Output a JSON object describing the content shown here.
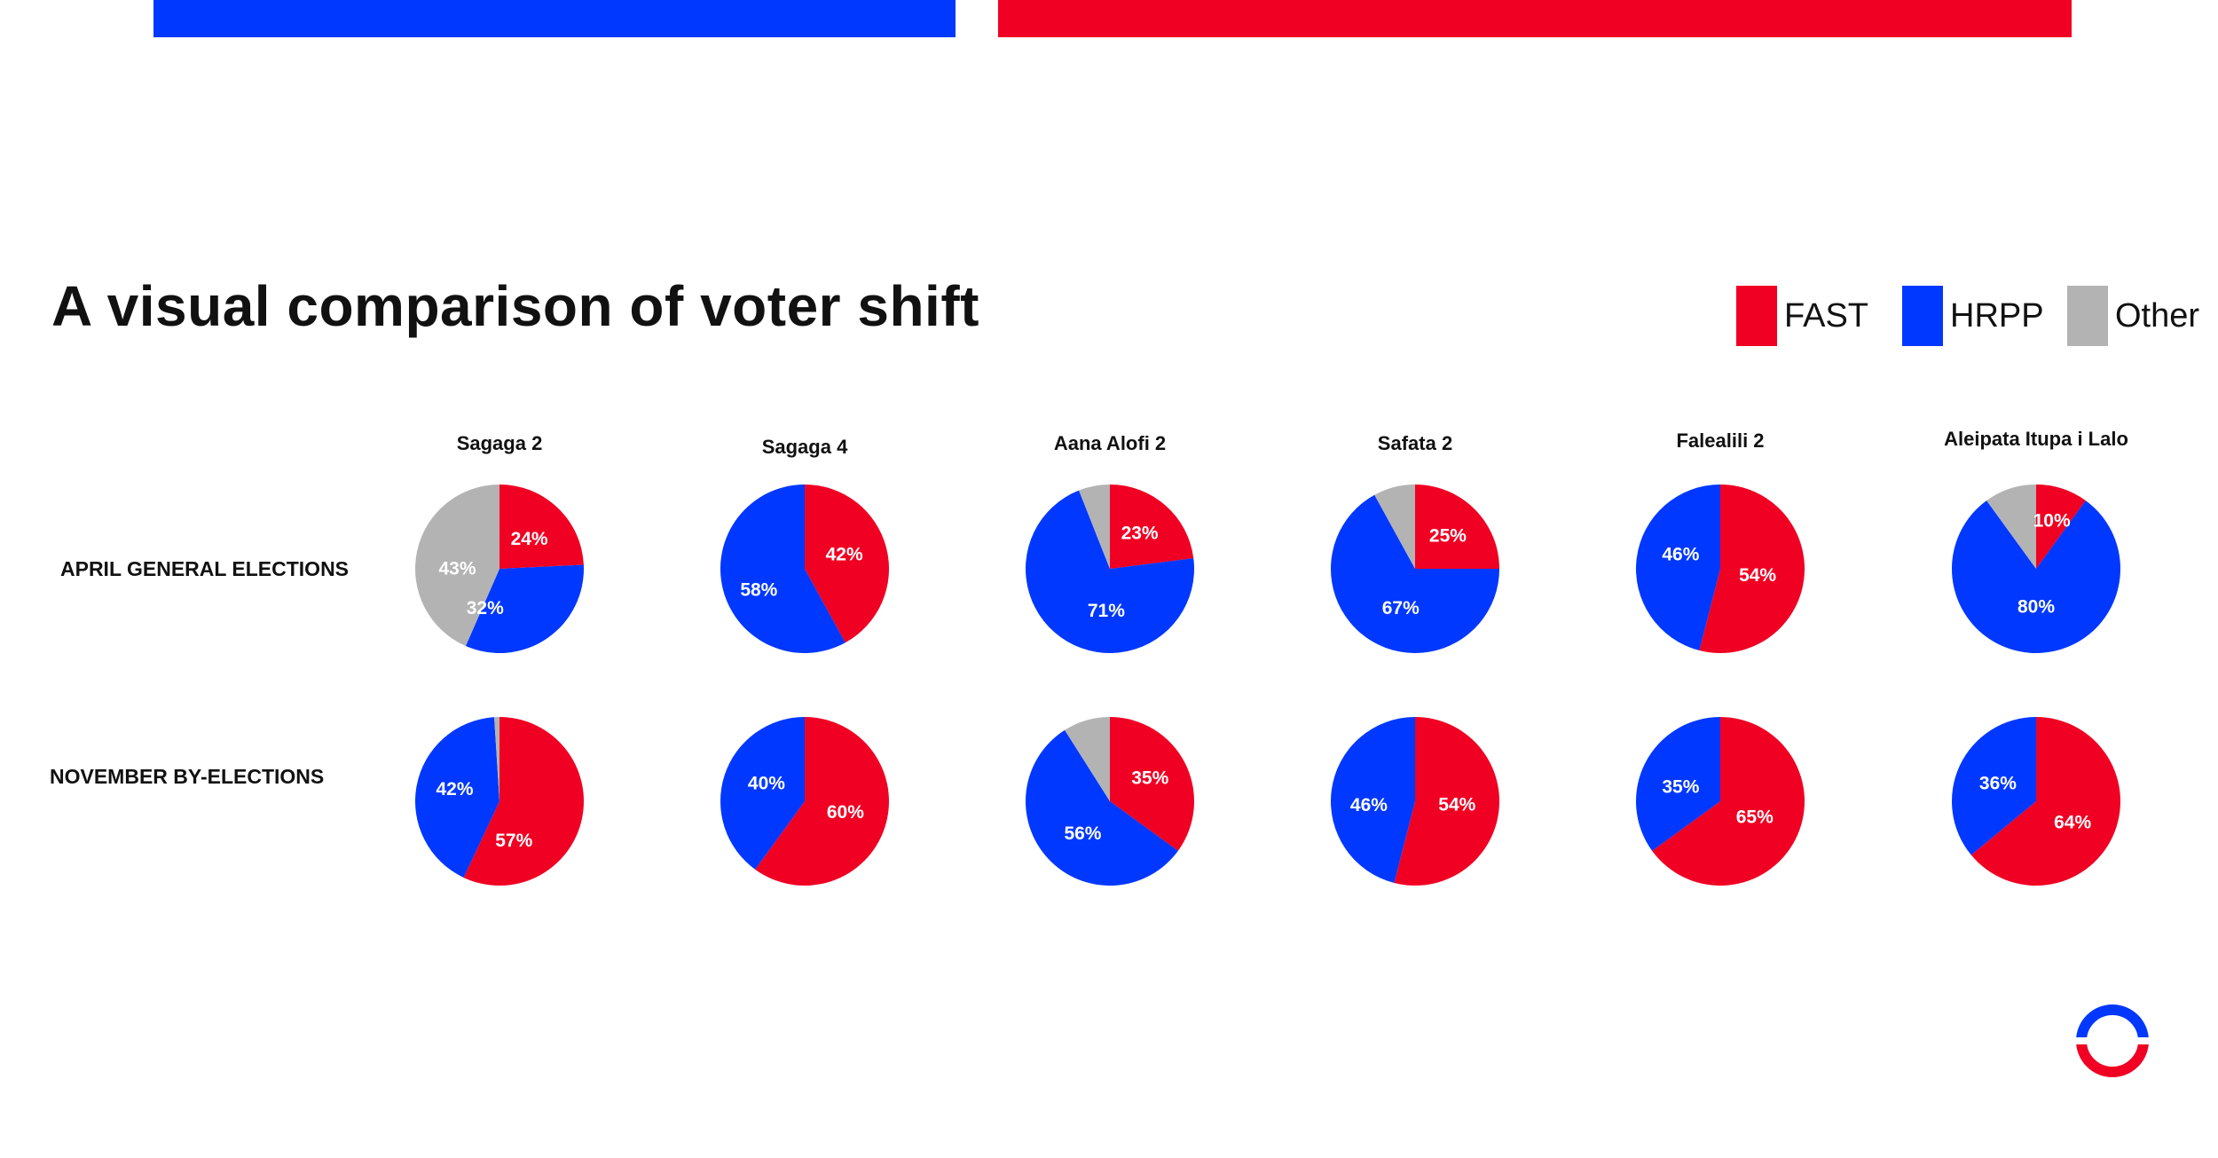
{
  "title": "A visual comparison of voter shift",
  "legend": [
    {
      "label": "FAST",
      "color": "#f00023"
    },
    {
      "label": "HRPP",
      "color": "#0038ff"
    },
    {
      "label": "Other",
      "color": "#b3b3b3"
    }
  ],
  "colors": {
    "FAST": "#f00023",
    "HRPP": "#0038ff",
    "Other": "#b3b3b3"
  },
  "row_labels": [
    "APRIL GENERAL ELECTIONS",
    "NOVEMBER BY-ELECTIONS"
  ],
  "chart_data": {
    "type": "pie",
    "parties": [
      "FAST",
      "HRPP",
      "Other"
    ],
    "districts": [
      {
        "name": "Sagaga 2",
        "april": {
          "FAST": 24,
          "HRPP": 32,
          "Other": 43
        },
        "november": {
          "FAST": 57,
          "HRPP": 42,
          "Other": 1
        }
      },
      {
        "name": "Sagaga 4",
        "april": {
          "FAST": 42,
          "HRPP": 58,
          "Other": 0
        },
        "november": {
          "FAST": 60,
          "HRPP": 40,
          "Other": 0
        }
      },
      {
        "name": "Aana Alofi 2",
        "april": {
          "FAST": 23,
          "HRPP": 71,
          "Other": 6
        },
        "november": {
          "FAST": 35,
          "HRPP": 56,
          "Other": 9
        }
      },
      {
        "name": "Safata 2",
        "april": {
          "FAST": 25,
          "HRPP": 67,
          "Other": 8
        },
        "november": {
          "FAST": 54,
          "HRPP": 46,
          "Other": 0
        }
      },
      {
        "name": "Falealili 2",
        "april": {
          "FAST": 54,
          "HRPP": 46,
          "Other": 0
        },
        "november": {
          "FAST": 65,
          "HRPP": 35,
          "Other": 0
        }
      },
      {
        "name": "Aleipata Itupa i Lalo",
        "april": {
          "FAST": 10,
          "HRPP": 80,
          "Other": 10
        },
        "november": {
          "FAST": 64,
          "HRPP": 36,
          "Other": 0
        }
      }
    ],
    "labels_shown": {
      "april": [
        [
          "24%",
          "32%",
          "43%"
        ],
        [
          "42%",
          "58%",
          null
        ],
        [
          "23%",
          "71%",
          null
        ],
        [
          "25%",
          "67%",
          null
        ],
        [
          "54%",
          "46%",
          null
        ],
        [
          "10%",
          "80%",
          null
        ]
      ],
      "november": [
        [
          "57%",
          "42%",
          null
        ],
        [
          "60%",
          "40%",
          null
        ],
        [
          "35%",
          "56%",
          null
        ],
        [
          "54%",
          "46%",
          null
        ],
        [
          "65%",
          "35%",
          null
        ],
        [
          "64%",
          "36%",
          null
        ]
      ]
    }
  }
}
